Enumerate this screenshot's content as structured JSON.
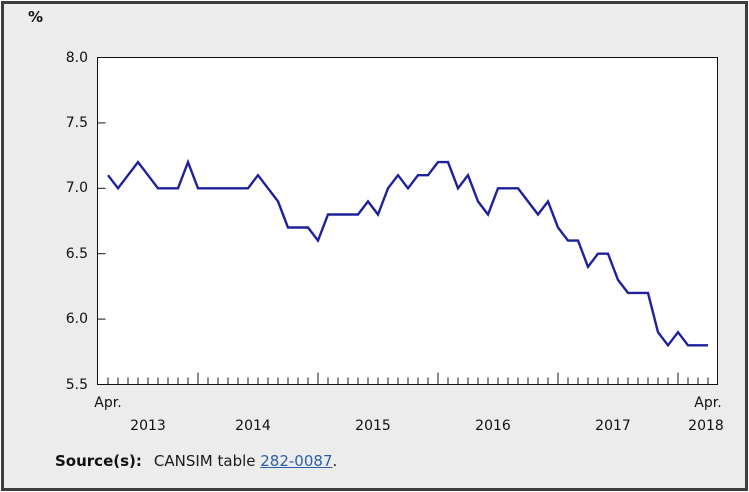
{
  "unit_label": "%",
  "axis": {
    "y_tick_labels": [
      "8.0",
      "7.5",
      "7.0",
      "6.5",
      "6.0",
      "5.5"
    ],
    "x_first_label": "Apr.",
    "x_last_label": "Apr.",
    "x_year_labels": [
      "2013",
      "2014",
      "2015",
      "2016",
      "2017",
      "2018"
    ]
  },
  "source": {
    "label": "Source(s):",
    "text": "CANSIM table ",
    "link": "282-0087",
    "suffix": "."
  },
  "chart_data": {
    "type": "line",
    "title": "",
    "ylabel": "%",
    "ylim": [
      5.5,
      8.0
    ],
    "y_ticks": [
      8.0,
      7.5,
      7.0,
      6.5,
      6.0,
      5.5
    ],
    "grid": false,
    "legend": false,
    "line_color": "#1e219b",
    "x": [
      "2013-04",
      "2013-05",
      "2013-06",
      "2013-07",
      "2013-08",
      "2013-09",
      "2013-10",
      "2013-11",
      "2013-12",
      "2014-01",
      "2014-02",
      "2014-03",
      "2014-04",
      "2014-05",
      "2014-06",
      "2014-07",
      "2014-08",
      "2014-09",
      "2014-10",
      "2014-11",
      "2014-12",
      "2015-01",
      "2015-02",
      "2015-03",
      "2015-04",
      "2015-05",
      "2015-06",
      "2015-07",
      "2015-08",
      "2015-09",
      "2015-10",
      "2015-11",
      "2015-12",
      "2016-01",
      "2016-02",
      "2016-03",
      "2016-04",
      "2016-05",
      "2016-06",
      "2016-07",
      "2016-08",
      "2016-09",
      "2016-10",
      "2016-11",
      "2016-12",
      "2017-01",
      "2017-02",
      "2017-03",
      "2017-04",
      "2017-05",
      "2017-06",
      "2017-07",
      "2017-08",
      "2017-09",
      "2017-10",
      "2017-11",
      "2017-12",
      "2018-01",
      "2018-02",
      "2018-03",
      "2018-04"
    ],
    "values": [
      7.1,
      7.0,
      7.1,
      7.2,
      7.1,
      7.0,
      7.0,
      7.0,
      7.2,
      7.0,
      7.0,
      7.0,
      7.0,
      7.0,
      7.0,
      7.1,
      7.0,
      6.9,
      6.7,
      6.7,
      6.7,
      6.6,
      6.8,
      6.8,
      6.8,
      6.8,
      6.9,
      6.8,
      7.0,
      7.1,
      7.0,
      7.1,
      7.1,
      7.2,
      7.2,
      7.0,
      7.1,
      6.9,
      6.8,
      7.0,
      7.0,
      7.0,
      6.9,
      6.8,
      6.9,
      6.7,
      6.6,
      6.6,
      6.4,
      6.5,
      6.5,
      6.3,
      6.2,
      6.2,
      6.2,
      5.9,
      5.8,
      5.9,
      5.8,
      5.8,
      5.8
    ]
  }
}
